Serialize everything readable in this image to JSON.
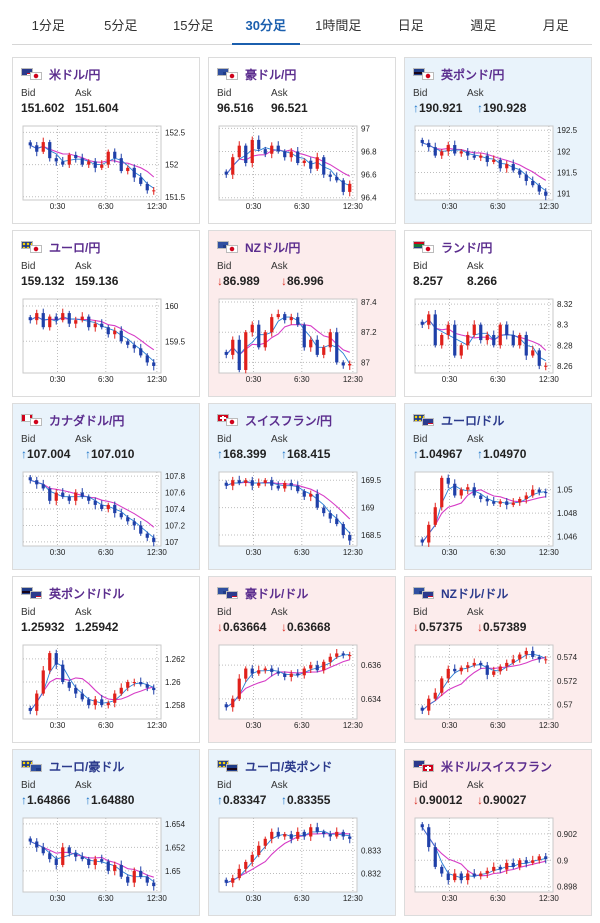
{
  "tabs": [
    {
      "label": "1分足",
      "active": false
    },
    {
      "label": "5分足",
      "active": false
    },
    {
      "label": "15分足",
      "active": false
    },
    {
      "label": "30分足",
      "active": true
    },
    {
      "label": "1時間足",
      "active": false
    },
    {
      "label": "日足",
      "active": false
    },
    {
      "label": "週足",
      "active": false
    },
    {
      "label": "月足",
      "active": false
    }
  ],
  "labels": {
    "bid": "Bid",
    "ask": "Ask"
  },
  "colors": {
    "up_arrow": "#1a73c8",
    "down_arrow": "#d93025",
    "candle_up": "#e0201b",
    "candle_down": "#1f3fa8",
    "ma_long": "#d63cc6",
    "ma_short": "#2a7fd4"
  },
  "x_labels": [
    "0:30",
    "6:30",
    "12:30"
  ],
  "cards": [
    {
      "title": "米ドル/円",
      "flags": [
        "us",
        "jp"
      ],
      "trend": "neutral",
      "title_style": "purple",
      "bid": "151.602",
      "ask": "151.604",
      "bid_arrow": "",
      "ask_arrow": ""
    },
    {
      "title": "豪ドル/円",
      "flags": [
        "au",
        "jp"
      ],
      "trend": "neutral",
      "title_style": "purple",
      "bid": "96.516",
      "ask": "96.521",
      "bid_arrow": "",
      "ask_arrow": ""
    },
    {
      "title": "英ポンド/円",
      "flags": [
        "gb",
        "jp"
      ],
      "trend": "up",
      "title_style": "purple",
      "bid": "190.921",
      "ask": "190.928",
      "bid_arrow": "↑",
      "ask_arrow": "↑"
    },
    {
      "title": "ユーロ/円",
      "flags": [
        "eu",
        "jp"
      ],
      "trend": "neutral",
      "title_style": "purple",
      "bid": "159.132",
      "ask": "159.136",
      "bid_arrow": "",
      "ask_arrow": ""
    },
    {
      "title": "NZドル/円",
      "flags": [
        "nz",
        "jp"
      ],
      "trend": "down",
      "title_style": "purple",
      "bid": "86.989",
      "ask": "86.996",
      "bid_arrow": "↓",
      "ask_arrow": "↓"
    },
    {
      "title": "ランド/円",
      "flags": [
        "za",
        "jp"
      ],
      "trend": "neutral",
      "title_style": "purple",
      "bid": "8.257",
      "ask": "8.266",
      "bid_arrow": "",
      "ask_arrow": ""
    },
    {
      "title": "カナダドル/円",
      "flags": [
        "ca",
        "jp"
      ],
      "trend": "up",
      "title_style": "purple",
      "bid": "107.004",
      "ask": "107.010",
      "bid_arrow": "↑",
      "ask_arrow": "↑"
    },
    {
      "title": "スイスフラン/円",
      "flags": [
        "ch",
        "jp"
      ],
      "trend": "up",
      "title_style": "purple",
      "bid": "168.399",
      "ask": "168.415",
      "bid_arrow": "↑",
      "ask_arrow": "↑"
    },
    {
      "title": "ユーロ/ドル",
      "flags": [
        "eu",
        "us"
      ],
      "trend": "up",
      "title_style": "navy",
      "bid": "1.04967",
      "ask": "1.04970",
      "bid_arrow": "↑",
      "ask_arrow": "↑"
    },
    {
      "title": "英ポンド/ドル",
      "flags": [
        "gb",
        "us"
      ],
      "trend": "neutral",
      "title_style": "purple",
      "bid": "1.25932",
      "ask": "1.25942",
      "bid_arrow": "",
      "ask_arrow": ""
    },
    {
      "title": "豪ドル/ドル",
      "flags": [
        "au",
        "us"
      ],
      "trend": "down",
      "title_style": "purple",
      "bid": "0.63664",
      "ask": "0.63668",
      "bid_arrow": "↓",
      "ask_arrow": "↓"
    },
    {
      "title": "NZドル/ドル",
      "flags": [
        "nz",
        "us"
      ],
      "trend": "down",
      "title_style": "navy",
      "bid": "0.57375",
      "ask": "0.57389",
      "bid_arrow": "↓",
      "ask_arrow": "↓"
    },
    {
      "title": "ユーロ/豪ドル",
      "flags": [
        "eu",
        "au"
      ],
      "trend": "up",
      "title_style": "navy",
      "bid": "1.64866",
      "ask": "1.64880",
      "bid_arrow": "↑",
      "ask_arrow": "↑"
    },
    {
      "title": "ユーロ/英ポンド",
      "flags": [
        "eu",
        "gb"
      ],
      "trend": "up",
      "title_style": "navy",
      "bid": "0.83347",
      "ask": "0.83355",
      "bid_arrow": "↑",
      "ask_arrow": "↑"
    },
    {
      "title": "米ドル/スイスフラン",
      "flags": [
        "us",
        "ch"
      ],
      "trend": "down",
      "title_style": "purple",
      "bid": "0.90012",
      "ask": "0.90027",
      "bid_arrow": "↓",
      "ask_arrow": "↓"
    }
  ],
  "chart_data": [
    {
      "type": "line",
      "title": "",
      "ylim": [
        151.45,
        152.6
      ],
      "yticks": [
        "152.5",
        "152",
        "151.5"
      ],
      "ytick_values": [
        152.5,
        152,
        151.5
      ],
      "x": [
        "0:30",
        "6:30",
        "12:30"
      ],
      "closes": [
        152.3,
        152.2,
        152.35,
        152.1,
        152.05,
        152.0,
        152.15,
        152.1,
        152.0,
        152.05,
        151.95,
        152.0,
        152.2,
        152.1,
        151.9,
        151.95,
        151.8,
        151.7,
        151.6,
        151.6
      ]
    },
    {
      "type": "line",
      "title": "",
      "ylim": [
        96.38,
        97.02
      ],
      "yticks": [
        "97",
        "96.8",
        "96.6",
        "96.4"
      ],
      "ytick_values": [
        97,
        96.8,
        96.6,
        96.4
      ],
      "x": [
        "0:30",
        "6:30",
        "12:30"
      ],
      "closes": [
        96.6,
        96.75,
        96.85,
        96.7,
        96.9,
        96.82,
        96.78,
        96.85,
        96.8,
        96.75,
        96.8,
        96.7,
        96.72,
        96.65,
        96.75,
        96.6,
        96.58,
        96.55,
        96.45,
        96.52
      ]
    },
    {
      "type": "line",
      "title": "",
      "ylim": [
        190.85,
        192.6
      ],
      "yticks": [
        "192.5",
        "192",
        "191.5",
        "191"
      ],
      "ytick_values": [
        192.5,
        192,
        191.5,
        191
      ],
      "x": [
        "0:30",
        "6:30",
        "12:30"
      ],
      "closes": [
        192.2,
        192.1,
        191.9,
        192.0,
        192.15,
        191.95,
        192.0,
        191.9,
        191.85,
        191.9,
        191.75,
        191.8,
        191.6,
        191.7,
        191.55,
        191.45,
        191.3,
        191.2,
        191.05,
        190.95
      ]
    },
    {
      "type": "line",
      "title": "",
      "ylim": [
        159.05,
        160.1
      ],
      "yticks": [
        "160",
        "159.5"
      ],
      "ytick_values": [
        160,
        159.5
      ],
      "x": [
        "0:30",
        "6:30",
        "12:30"
      ],
      "closes": [
        159.8,
        159.9,
        159.7,
        159.85,
        159.8,
        159.9,
        159.75,
        159.8,
        159.85,
        159.7,
        159.75,
        159.7,
        159.6,
        159.65,
        159.5,
        159.45,
        159.4,
        159.3,
        159.2,
        159.15
      ]
    },
    {
      "type": "line",
      "title": "",
      "ylim": [
        86.93,
        87.42
      ],
      "yticks": [
        "87.4",
        "87.2",
        "87"
      ],
      "ytick_values": [
        87.4,
        87.2,
        87
      ],
      "x": [
        "0:30",
        "6:30",
        "12:30"
      ],
      "closes": [
        87.05,
        87.15,
        86.95,
        87.2,
        87.25,
        87.1,
        87.2,
        87.3,
        87.32,
        87.28,
        87.3,
        87.25,
        87.1,
        87.15,
        87.05,
        87.1,
        87.2,
        87.0,
        86.98,
        86.99
      ]
    },
    {
      "type": "line",
      "title": "",
      "ylim": [
        8.253,
        8.325
      ],
      "yticks": [
        "8.32",
        "8.3",
        "8.28",
        "8.26"
      ],
      "ytick_values": [
        8.32,
        8.3,
        8.28,
        8.26
      ],
      "x": [
        "0:30",
        "6:30",
        "12:30"
      ],
      "closes": [
        8.3,
        8.31,
        8.28,
        8.29,
        8.3,
        8.27,
        8.28,
        8.29,
        8.3,
        8.285,
        8.29,
        8.28,
        8.3,
        8.29,
        8.28,
        8.29,
        8.27,
        8.275,
        8.26,
        8.26
      ]
    },
    {
      "type": "line",
      "title": "",
      "ylim": [
        106.95,
        107.85
      ],
      "yticks": [
        "107.8",
        "107.6",
        "107.4",
        "107.2",
        "107"
      ],
      "ytick_values": [
        107.8,
        107.6,
        107.4,
        107.2,
        107
      ],
      "x": [
        "0:30",
        "6:30",
        "12:30"
      ],
      "closes": [
        107.75,
        107.7,
        107.65,
        107.5,
        107.6,
        107.55,
        107.5,
        107.6,
        107.55,
        107.5,
        107.45,
        107.4,
        107.45,
        107.35,
        107.3,
        107.25,
        107.2,
        107.1,
        107.05,
        107.0
      ]
    },
    {
      "type": "line",
      "title": "",
      "ylim": [
        168.3,
        169.65
      ],
      "yticks": [
        "169.5",
        "169",
        "168.5"
      ],
      "ytick_values": [
        169.5,
        169,
        168.5
      ],
      "x": [
        "0:30",
        "6:30",
        "12:30"
      ],
      "closes": [
        169.4,
        169.5,
        169.45,
        169.5,
        169.4,
        169.45,
        169.5,
        169.4,
        169.35,
        169.45,
        169.4,
        169.3,
        169.2,
        169.25,
        169.0,
        168.9,
        168.8,
        168.7,
        168.5,
        168.4
      ]
    },
    {
      "type": "line",
      "title": "",
      "ylim": [
        1.0452,
        1.0515
      ],
      "yticks": [
        "1.05",
        "1.048",
        "1.046"
      ],
      "ytick_values": [
        1.05,
        1.048,
        1.046
      ],
      "x": [
        "0:30",
        "6:30",
        "12:30"
      ],
      "closes": [
        1.0455,
        1.047,
        1.0485,
        1.051,
        1.0505,
        1.0495,
        1.05,
        1.0502,
        1.0495,
        1.0492,
        1.049,
        1.0488,
        1.049,
        1.0487,
        1.0489,
        1.0492,
        1.0495,
        1.05,
        1.0498,
        1.0497
      ]
    },
    {
      "type": "line",
      "title": "",
      "ylim": [
        1.2568,
        1.2632
      ],
      "yticks": [
        "1.262",
        "1.26",
        "1.258"
      ],
      "ytick_values": [
        1.262,
        1.26,
        1.258
      ],
      "x": [
        "0:30",
        "6:30",
        "12:30"
      ],
      "closes": [
        1.2575,
        1.259,
        1.261,
        1.2625,
        1.2615,
        1.26,
        1.2595,
        1.259,
        1.2585,
        1.258,
        1.2585,
        1.258,
        1.2582,
        1.259,
        1.2595,
        1.26,
        1.26,
        1.2598,
        1.2595,
        1.2593
      ]
    },
    {
      "type": "line",
      "title": "",
      "ylim": [
        0.6328,
        0.6372
      ],
      "yticks": [
        "0.636",
        "0.634"
      ],
      "ytick_values": [
        0.636,
        0.634
      ],
      "x": [
        "0:30",
        "6:30",
        "12:30"
      ],
      "closes": [
        0.6335,
        0.634,
        0.6352,
        0.6358,
        0.6355,
        0.6357,
        0.6358,
        0.6356,
        0.6355,
        0.6353,
        0.6355,
        0.6354,
        0.6358,
        0.636,
        0.6357,
        0.6362,
        0.6365,
        0.6367,
        0.6366,
        0.6366
      ]
    },
    {
      "type": "line",
      "title": "",
      "ylim": [
        0.5688,
        0.575
      ],
      "yticks": [
        "0.574",
        "0.572",
        "0.57"
      ],
      "ytick_values": [
        0.574,
        0.572,
        0.57
      ],
      "x": [
        "0:30",
        "6:30",
        "12:30"
      ],
      "closes": [
        0.5695,
        0.5705,
        0.571,
        0.5722,
        0.573,
        0.5728,
        0.5731,
        0.5733,
        0.5735,
        0.5733,
        0.5725,
        0.5728,
        0.5732,
        0.5735,
        0.5738,
        0.5742,
        0.5745,
        0.574,
        0.5738,
        0.5738
      ]
    },
    {
      "type": "line",
      "title": "",
      "ylim": [
        1.6482,
        1.6545
      ],
      "yticks": [
        "1.654",
        "1.652",
        "1.65"
      ],
      "ytick_values": [
        1.654,
        1.652,
        1.65
      ],
      "x": [
        "0:30",
        "6:30",
        "12:30"
      ],
      "closes": [
        1.6525,
        1.652,
        1.6515,
        1.651,
        1.6505,
        1.652,
        1.6515,
        1.6512,
        1.651,
        1.6505,
        1.651,
        1.6508,
        1.65,
        1.6505,
        1.6495,
        1.649,
        1.65,
        1.6495,
        1.649,
        1.6487
      ]
    },
    {
      "type": "line",
      "title": "",
      "ylim": [
        0.8312,
        0.8344
      ],
      "yticks": [
        "0.833",
        "0.832"
      ],
      "ytick_values": [
        0.833,
        0.832
      ],
      "x": [
        "0:30",
        "6:30",
        "12:30"
      ],
      "closes": [
        0.8316,
        0.8318,
        0.8322,
        0.8325,
        0.8328,
        0.8332,
        0.8335,
        0.8338,
        0.8336,
        0.8337,
        0.8335,
        0.8338,
        0.8336,
        0.834,
        0.8338,
        0.8337,
        0.8336,
        0.8338,
        0.8336,
        0.8335
      ]
    },
    {
      "type": "line",
      "title": "",
      "ylim": [
        0.8976,
        0.9032
      ],
      "yticks": [
        "0.902",
        "0.9",
        "0.898"
      ],
      "ytick_values": [
        0.902,
        0.9,
        0.898
      ],
      "x": [
        "0:30",
        "6:30",
        "12:30"
      ],
      "closes": [
        0.9025,
        0.901,
        0.8995,
        0.899,
        0.8985,
        0.899,
        0.8985,
        0.899,
        0.8988,
        0.899,
        0.8992,
        0.8995,
        0.8993,
        0.8998,
        0.8995,
        0.9,
        0.8998,
        0.9,
        0.9003,
        0.9001
      ]
    }
  ]
}
